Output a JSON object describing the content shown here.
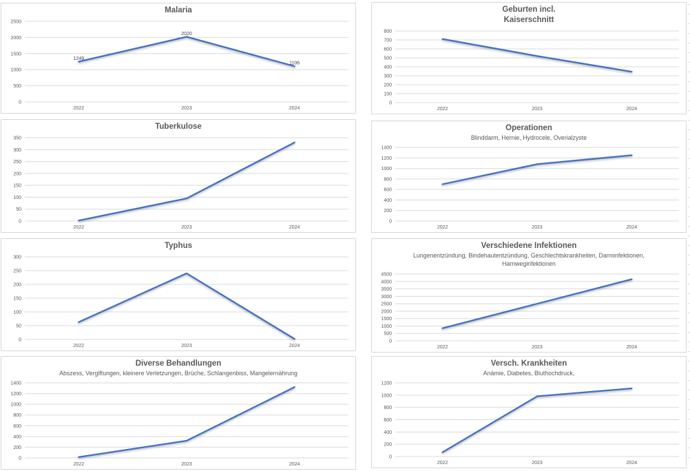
{
  "colors": {
    "line": "#4472C4",
    "grid": "#d9d9d9",
    "panel_border": "#d7d7d7",
    "title_text": "#595959",
    "tick_text": "#595959",
    "data_label_text": "#404040"
  },
  "chart_data": [
    {
      "type": "line",
      "title": "Malaria",
      "subtitle": "",
      "categories": [
        "2022",
        "2023",
        "2024"
      ],
      "values": [
        1249,
        2020,
        1106
      ],
      "data_labels": [
        "1249",
        "2020",
        "1106"
      ],
      "show_data_labels": true,
      "ylim": [
        0,
        2500
      ],
      "ystep": 500,
      "grid": true,
      "legend": "none"
    },
    {
      "type": "line",
      "title": "Geburten incl.\nKaiserschnitt",
      "subtitle": "",
      "categories": [
        "2022",
        "2023",
        "2024"
      ],
      "values": [
        710,
        520,
        345
      ],
      "data_labels": [],
      "show_data_labels": false,
      "ylim": [
        0,
        800
      ],
      "ystep": 100,
      "grid": true,
      "legend": "none"
    },
    {
      "type": "line",
      "title": "Tuberkulose",
      "subtitle": "",
      "categories": [
        "2022",
        "2023",
        "2024"
      ],
      "values": [
        2,
        95,
        330
      ],
      "data_labels": [],
      "show_data_labels": false,
      "ylim": [
        0,
        350
      ],
      "ystep": 50,
      "grid": true,
      "legend": "none"
    },
    {
      "type": "line",
      "title": "Operationen",
      "subtitle": "Blinddarm, Hernie, Hydrocele, Overialzyste",
      "categories": [
        "2022",
        "2023",
        "2024"
      ],
      "values": [
        700,
        1080,
        1250
      ],
      "data_labels": [],
      "show_data_labels": false,
      "ylim": [
        0,
        1400
      ],
      "ystep": 200,
      "grid": true,
      "legend": "none"
    },
    {
      "type": "line",
      "title": "Typhus",
      "subtitle": "",
      "categories": [
        "2022",
        "2023",
        "2024"
      ],
      "values": [
        63,
        240,
        2
      ],
      "data_labels": [],
      "show_data_labels": false,
      "ylim": [
        0,
        300
      ],
      "ystep": 50,
      "grid": true,
      "legend": "none"
    },
    {
      "type": "line",
      "title": "Verschiedene Infektionen",
      "subtitle": "Lungenentzündung, Bindehautentzündung, Geschlechtskrankheiten, Darminfektionen,\nHarnweginfektionen",
      "categories": [
        "2022",
        "2023",
        "2024"
      ],
      "values": [
        850,
        2500,
        4150
      ],
      "data_labels": [],
      "show_data_labels": false,
      "ylim": [
        0,
        4500
      ],
      "ystep": 500,
      "grid": true,
      "legend": "none"
    },
    {
      "type": "line",
      "title": "Diverse Behandlungen",
      "subtitle": "Abszess, Vergiftungen, kleinere Verletzungen, Brüche, Schlangenbiss, Mangelernährung",
      "categories": [
        "2022",
        "2023",
        "2024"
      ],
      "values": [
        15,
        320,
        1320
      ],
      "data_labels": [],
      "show_data_labels": false,
      "ylim": [
        0,
        1400
      ],
      "ystep": 200,
      "grid": true,
      "legend": "none"
    },
    {
      "type": "line",
      "title": "Versch. Krankheiten",
      "subtitle": "Anämie, Diabetes, Bluthochdruck,",
      "categories": [
        "2022",
        "2023",
        "2024"
      ],
      "values": [
        70,
        980,
        1110
      ],
      "data_labels": [],
      "show_data_labels": false,
      "ylim": [
        0,
        1200
      ],
      "ystep": 200,
      "grid": true,
      "legend": "none"
    }
  ]
}
